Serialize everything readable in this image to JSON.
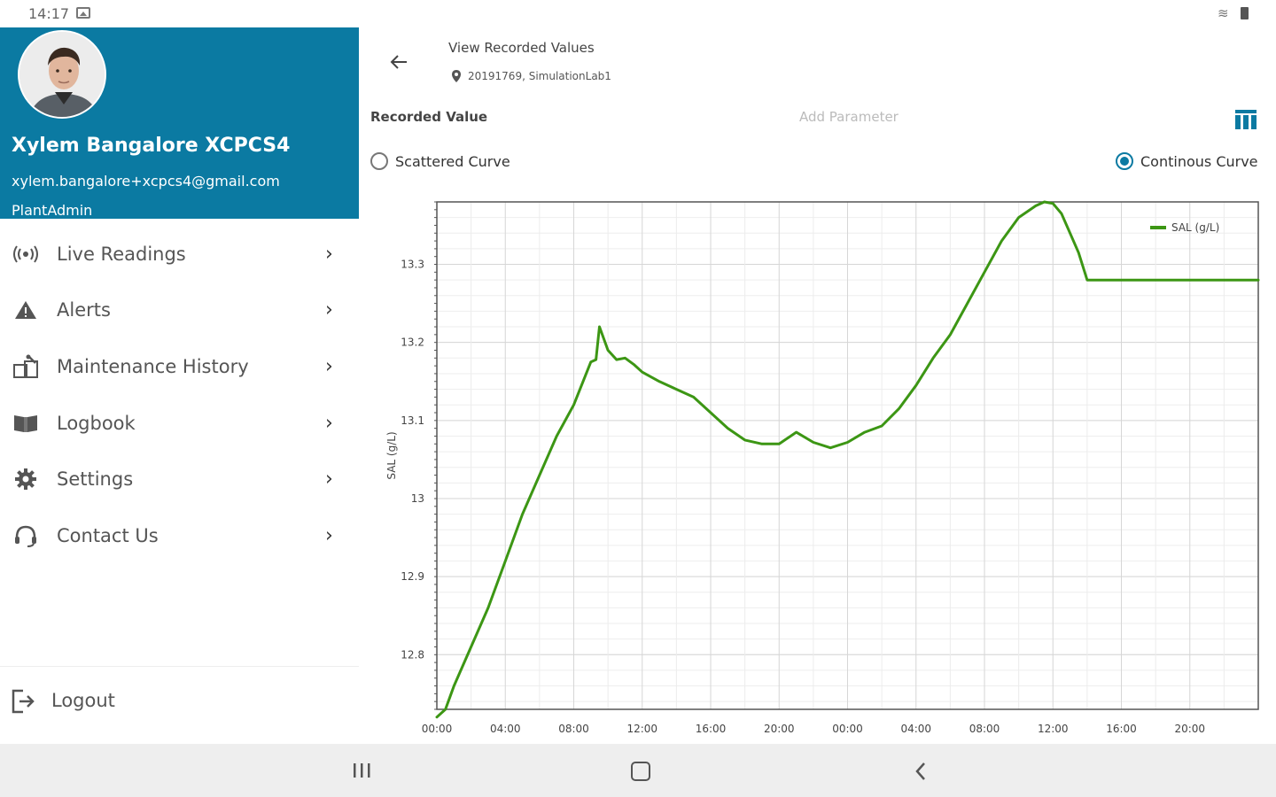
{
  "status_bar": {
    "time": "14:17"
  },
  "drawer": {
    "profile": {
      "name": "Xylem Bangalore XCPCS4",
      "email": "xylem.bangalore+xcpcs4@gmail.com",
      "role": "PlantAdmin"
    },
    "menu": [
      {
        "label": "Live Readings",
        "icon": "broadcast-icon"
      },
      {
        "label": "Alerts",
        "icon": "warning-icon"
      },
      {
        "label": "Maintenance History",
        "icon": "maintenance-icon"
      },
      {
        "label": "Logbook",
        "icon": "book-icon"
      },
      {
        "label": "Settings",
        "icon": "gear-icon"
      },
      {
        "label": "Contact Us",
        "icon": "headset-icon"
      }
    ],
    "logout_label": "Logout"
  },
  "header": {
    "title": "View Recorded Values",
    "location": "20191769, SimulationLab1"
  },
  "controls": {
    "recorded_value_label": "Recorded Value",
    "add_parameter_placeholder": "Add Parameter",
    "scattered_label": "Scattered Curve",
    "continuous_label": "Continous Curve",
    "selected_mode": "continuous"
  },
  "colors": {
    "accent": "#0b7aa2",
    "series": "#3c9614"
  },
  "chart_data": {
    "type": "line",
    "ylabel": "SAL (g/L)",
    "xlabel": "",
    "legend_position": "top-right",
    "grid": true,
    "ylim": [
      12.73,
      13.38
    ],
    "yticks": [
      12.8,
      12.9,
      13.0,
      13.1,
      13.2,
      13.3
    ],
    "ytick_labels": [
      "12.8",
      "12.9",
      "13",
      "13.1",
      "13.2",
      "13.3"
    ],
    "x_tick_labels": [
      "00:00",
      "04:00",
      "08:00",
      "12:00",
      "16:00",
      "20:00",
      "00:00",
      "04:00",
      "08:00",
      "12:00",
      "16:00",
      "20:00"
    ],
    "x_hours_range": [
      0,
      48
    ],
    "series": [
      {
        "name": "SAL (g/L)",
        "x_hours": [
          0,
          0.5,
          1,
          2,
          3,
          4,
          5,
          6,
          7,
          8,
          9,
          9.3,
          9.5,
          10,
          10.5,
          11,
          11.5,
          12,
          13,
          14,
          15,
          16,
          17,
          18,
          19,
          20,
          21,
          22,
          23,
          24,
          25,
          26,
          27,
          28,
          29,
          30,
          31,
          32,
          33,
          34,
          35,
          35.5,
          36,
          36.5,
          37,
          37.5,
          38,
          38.5,
          39,
          40,
          42,
          44,
          46,
          48
        ],
        "values": [
          12.72,
          12.73,
          12.76,
          12.81,
          12.86,
          12.92,
          12.98,
          13.03,
          13.08,
          13.12,
          13.175,
          13.178,
          13.22,
          13.19,
          13.178,
          13.18,
          13.172,
          13.162,
          13.15,
          13.14,
          13.13,
          13.11,
          13.09,
          13.075,
          13.07,
          13.07,
          13.085,
          13.072,
          13.065,
          13.072,
          13.085,
          13.093,
          13.115,
          13.145,
          13.18,
          13.21,
          13.25,
          13.29,
          13.33,
          13.36,
          13.375,
          13.38,
          13.378,
          13.365,
          13.34,
          13.315,
          13.28,
          13.28,
          13.28,
          13.28,
          13.28,
          13.28,
          13.28,
          13.28
        ]
      }
    ]
  }
}
